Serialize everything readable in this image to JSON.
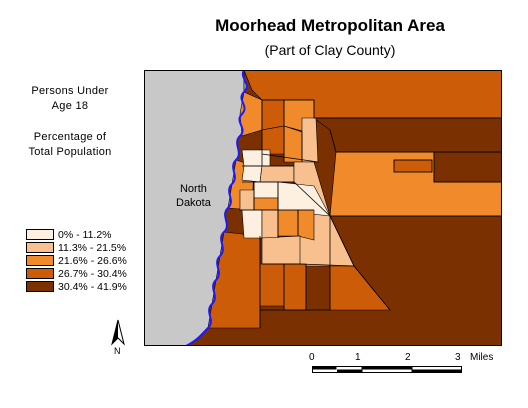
{
  "map": {
    "title": "Moorhead Metropolitan Area",
    "subtitle": "(Part of Clay County)",
    "variable_label_lines": [
      "Persons Under",
      "Age 18"
    ],
    "measure_label_lines": [
      "Percentage of",
      "Total Population"
    ],
    "region_label_lines": [
      "North",
      "Dakota"
    ],
    "colors": {
      "outside_state": "#c8c8c8",
      "river": "#1a1aff",
      "boundary": "#000000"
    },
    "legend": [
      {
        "label": "0% - 11.2%",
        "color": "#fdf0e1"
      },
      {
        "label": "11.3% - 21.5%",
        "color": "#f7c08e"
      },
      {
        "label": "21.6% - 26.6%",
        "color": "#f08a2a"
      },
      {
        "label": "26.7% - 30.4%",
        "color": "#cc5c07"
      },
      {
        "label": "30.4% - 41.9%",
        "color": "#7a3000"
      }
    ],
    "north_arrow_label": "N",
    "scale_bar": {
      "ticks": [
        "0",
        "1",
        "2",
        "3"
      ],
      "unit": "Miles"
    }
  }
}
